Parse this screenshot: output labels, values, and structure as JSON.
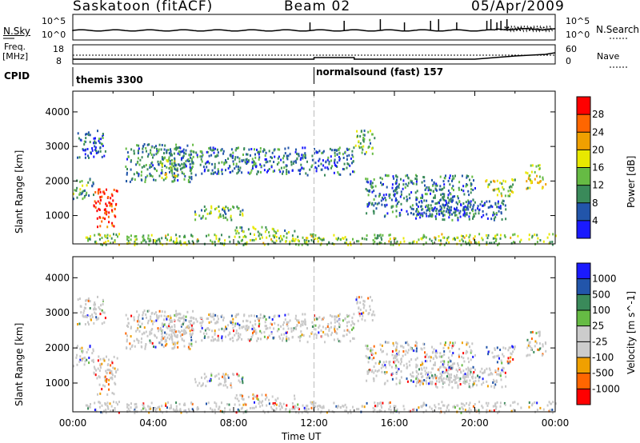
{
  "header": {
    "station": "Saskatoon (fitACF)",
    "beam": "Beam 02",
    "date": "05/Apr/2009"
  },
  "noise_panel": {
    "left_label": "N.Sky",
    "left_ticks": [
      "10^5",
      "10^0"
    ],
    "right_ticks": [
      "10^5",
      "10^0"
    ],
    "right_label": "N.Search"
  },
  "freq_panel": {
    "left_label_1": "Freq.",
    "left_label_2": "[MHz]",
    "left_ticks": [
      "18",
      "8"
    ],
    "right_ticks": [
      "60",
      "0"
    ],
    "right_label": "Nave"
  },
  "cpid_panel": {
    "label": "CPID",
    "programs": [
      {
        "name": "themis 3300",
        "start_hour": 0
      },
      {
        "name": "normalsound (fast) 157",
        "start_hour": 12
      }
    ]
  },
  "colors": {
    "power": [
      "#1a1aff",
      "#2255aa",
      "#3a8a5a",
      "#66bb44",
      "#e8e800",
      "#f0a000",
      "#ff6600",
      "#ff0000"
    ],
    "velocity": [
      "#ff0000",
      "#ff6600",
      "#f0a000",
      "#cccccc",
      "#cccccc",
      "#66bb44",
      "#3a8a5a",
      "#2255aa",
      "#1a1aff"
    ]
  },
  "chart_data": [
    {
      "type": "heatmap",
      "quantity": "power",
      "ylabel": "Slant Range [km]",
      "yticks": [
        "1000",
        "2000",
        "3000",
        "4000"
      ],
      "ylim": [
        180,
        4600
      ],
      "colorbar_label": "Power [dB]",
      "colorbar_ticks": [
        "4",
        "8",
        "12",
        "16",
        "20",
        "24",
        "28"
      ],
      "regions": [
        {
          "t0": 0.0,
          "t1": 1.0,
          "r0": 1500,
          "r1": 2100,
          "level": 0.35
        },
        {
          "t0": 1.0,
          "t1": 2.2,
          "r0": 700,
          "r1": 1800,
          "level": 0.9
        },
        {
          "t0": 0.2,
          "t1": 1.6,
          "r0": 2700,
          "r1": 3500,
          "level": 0.2
        },
        {
          "t0": 2.5,
          "t1": 6.0,
          "r0": 2000,
          "r1": 3100,
          "level": 0.3
        },
        {
          "t0": 4.3,
          "t1": 5.2,
          "r0": 2100,
          "r1": 2700,
          "level": 0.55
        },
        {
          "t0": 5.0,
          "t1": 14.0,
          "r0": 2200,
          "r1": 3000,
          "level": 0.25
        },
        {
          "t0": 6.0,
          "t1": 8.5,
          "r0": 900,
          "r1": 1300,
          "level": 0.4
        },
        {
          "t0": 8.0,
          "t1": 11.0,
          "r0": 500,
          "r1": 700,
          "level": 0.4
        },
        {
          "t0": 0.5,
          "t1": 24.0,
          "r0": 180,
          "r1": 500,
          "level": 0.45
        },
        {
          "t0": 14.0,
          "t1": 15.0,
          "r0": 2800,
          "r1": 3500,
          "level": 0.4
        },
        {
          "t0": 14.5,
          "t1": 20.0,
          "r0": 1000,
          "r1": 2200,
          "level": 0.25
        },
        {
          "t0": 17.0,
          "t1": 21.5,
          "r0": 900,
          "r1": 1500,
          "level": 0.2
        },
        {
          "t0": 20.5,
          "t1": 22.0,
          "r0": 1600,
          "r1": 2100,
          "level": 0.45
        },
        {
          "t0": 22.5,
          "t1": 23.5,
          "r0": 1800,
          "r1": 2500,
          "level": 0.55
        }
      ]
    },
    {
      "type": "heatmap",
      "quantity": "velocity",
      "ylabel": "Slant Range [km]",
      "yticks": [
        "1000",
        "2000",
        "3000",
        "4000"
      ],
      "ylim": [
        180,
        4600
      ],
      "colorbar_label": "Velocity [m s^-1]",
      "colorbar_ticks": [
        "1000",
        "500",
        "100",
        "25",
        "-25",
        "-100",
        "-500",
        "-1000"
      ],
      "xlabel": "Time UT",
      "xticks": [
        "00:00",
        "04:00",
        "08:00",
        "12:00",
        "16:00",
        "20:00",
        "00:00"
      ],
      "xlim_hours": [
        0,
        24
      ]
    }
  ]
}
